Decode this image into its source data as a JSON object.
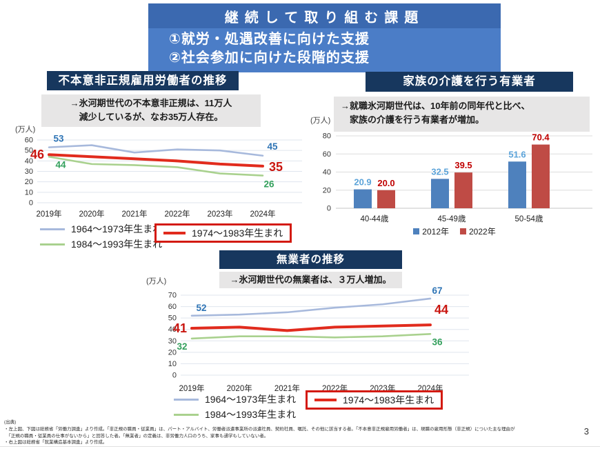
{
  "colors": {
    "header_top_bg": "#3b69b0",
    "header_body_bg": "#4b7dc7",
    "panel_title_bg": "#17375e",
    "note_bg": "#e7e6e6",
    "accent_red": "#d31a10"
  },
  "header": {
    "title": "継続して取り組む課題",
    "subtitle1": "①就労・処遇改善に向けた支援",
    "subtitle2": "②社会参加に向けた段階的支援"
  },
  "panels": {
    "involuntary": {
      "title": "不本意非正規雇用労働者の推移",
      "note1": "→氷河期世代の不本意非正規は、11万人",
      "note2": "減少しているが、なお35万人存在。",
      "unit": "(万人)"
    },
    "caregiving": {
      "title": "家族の介護を行う有業者",
      "note1": "→就職氷河期世代は、10年前の同年代と比べ、",
      "note2": "家族の介護を行う有業者が増加。",
      "unit": "(万人)"
    },
    "jobless": {
      "title": "無業者の推移",
      "note1": "→氷河期世代の無業者は、３万人増加。",
      "unit": "(万人)"
    }
  },
  "chart_data": [
    {
      "id": "involuntary",
      "type": "line",
      "title": "不本意非正規雇用労働者の推移",
      "ylabel": "万人",
      "x": [
        "2019年",
        "2020年",
        "2021年",
        "2022年",
        "2023年",
        "2024年"
      ],
      "ylim": [
        0,
        60
      ],
      "ytick_step": 10,
      "grid": true,
      "legend_position": "below",
      "series": [
        {
          "name": "1964〜1973年生まれ",
          "color": "#a7b9dc",
          "label_color": "#2e74b5",
          "values": [
            53,
            55,
            48,
            51,
            50,
            45
          ]
        },
        {
          "name": "1974〜1983年生まれ",
          "color": "#e12b1d",
          "label_color": "#c9150f",
          "values": [
            46,
            44,
            42,
            40,
            37,
            35
          ],
          "emphasized": true
        },
        {
          "name": "1984〜1993年生まれ",
          "color": "#a9d18e",
          "label_color": "#33a05c",
          "values": [
            44,
            37,
            36,
            34,
            28,
            26
          ]
        }
      ]
    },
    {
      "id": "caregiving",
      "type": "bar",
      "title": "家族の介護を行う有業者",
      "ylabel": "万人",
      "categories": [
        "40-44歳",
        "45-49歳",
        "50-54歳"
      ],
      "ylim": [
        0,
        80
      ],
      "ytick_step": 20,
      "grid": true,
      "legend_position": "below",
      "series": [
        {
          "name": "2012年",
          "color": "#4e81bd",
          "label_color": "#5ba3d9",
          "values": [
            20.9,
            32.5,
            51.6
          ],
          "labels": [
            "20.9",
            "32.5",
            "51.6"
          ]
        },
        {
          "name": "2022年",
          "color": "#bf4b45",
          "label_color": "#c00000",
          "values": [
            20.0,
            39.5,
            70.4
          ],
          "labels": [
            "20.0",
            "39.5",
            "70.4"
          ]
        }
      ]
    },
    {
      "id": "jobless",
      "type": "line",
      "title": "無業者の推移",
      "ylabel": "万人",
      "x": [
        "2019年",
        "2020年",
        "2021年",
        "2022年",
        "2023年",
        "2024年"
      ],
      "ylim": [
        0,
        70
      ],
      "ytick_step": 10,
      "grid": true,
      "legend_position": "below",
      "series": [
        {
          "name": "1964〜1973年生まれ",
          "color": "#a7b9dc",
          "label_color": "#2e74b5",
          "values": [
            52,
            53,
            55,
            59,
            62,
            67
          ]
        },
        {
          "name": "1974〜1983年生まれ",
          "color": "#e12b1d",
          "label_color": "#c9150f",
          "values": [
            41,
            42,
            39,
            42,
            43,
            44
          ],
          "emphasized": true
        },
        {
          "name": "1984〜1993年生まれ",
          "color": "#a9d18e",
          "label_color": "#33a05c",
          "values": [
            32,
            34,
            34,
            33,
            34,
            36
          ]
        }
      ]
    }
  ],
  "footnote": {
    "heading": "(出典)",
    "line1": "・左上図、下図は総務省「労働力調査」より作成。「非正規の職員・従業員」は、パート・アルバイト、労働者派遣事業所の派遣社員、契約社員、嘱託、その他に該当する者。「不本意非正規雇用労働者」は、現職の雇用形態（非正規）についた主な理由が",
    "line2": "　「正規の職員・従業員の仕事がないから」と回答した者。「無業者」の定義は、非労働力人口のうち、家事も通学もしていない者。",
    "line3": "・右上図は総務省「就業構造基本調査」より作成。"
  },
  "page_number": "3"
}
